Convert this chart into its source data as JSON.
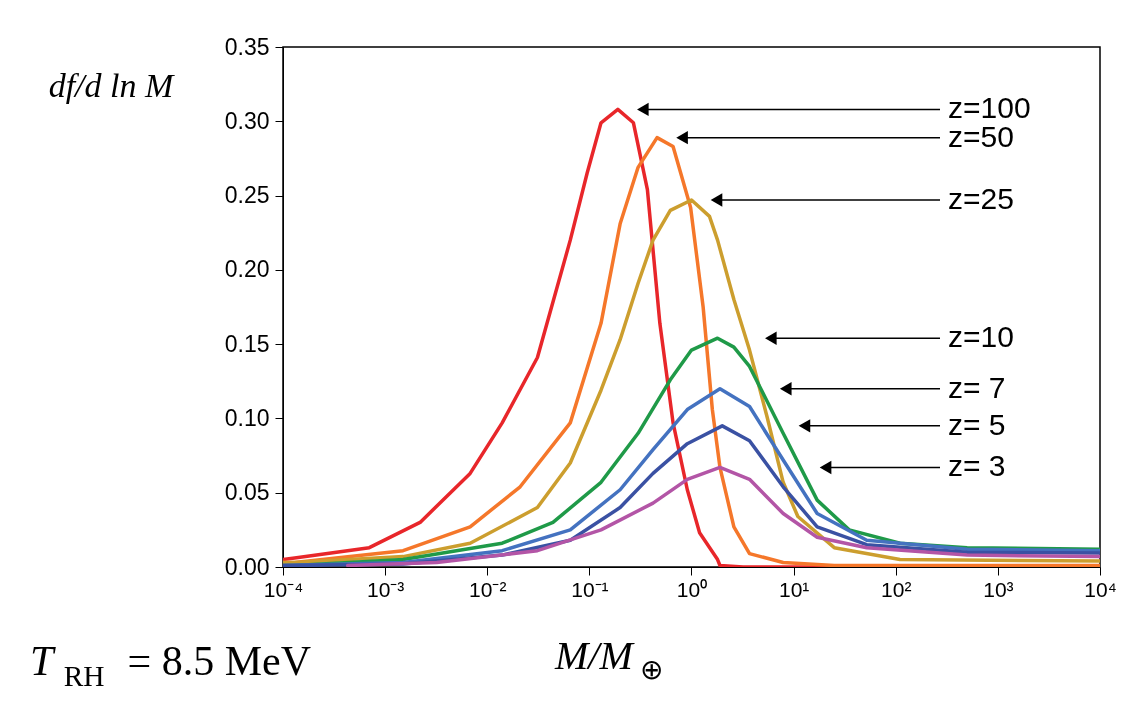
{
  "chart_data": {
    "type": "line",
    "xlabel": "M/M$_{⊕}$",
    "ylabel": "df/d ln M",
    "log": "x",
    "xlim": [
      0.0001,
      10000
    ],
    "ylim": [
      0,
      0.35
    ],
    "xticks": [
      {
        "value": 0.0001,
        "label": "10⁻⁴"
      },
      {
        "value": 0.001,
        "label": "10⁻³"
      },
      {
        "value": 0.01,
        "label": "10⁻²"
      },
      {
        "value": 0.1,
        "label": "10⁻¹"
      },
      {
        "value": 1,
        "label": "10⁰"
      },
      {
        "value": 10,
        "label": "10¹"
      },
      {
        "value": 100,
        "label": "10²"
      },
      {
        "value": 1000,
        "label": "10³"
      },
      {
        "value": 10000,
        "label": "10⁴"
      }
    ],
    "yticks": [
      {
        "value": 0,
        "label": "0.00"
      },
      0.05,
      {
        "value": 0.1,
        "label": "0.10"
      },
      0.15,
      {
        "value": 0.2,
        "label": "0.20"
      },
      0.25,
      {
        "value": 0.3,
        "label": "0.30"
      },
      0.35
    ],
    "grid": false,
    "legend": false,
    "line_style": "solid",
    "marker": "none",
    "series": [
      {
        "color": "#e8262a",
        "x": [
          0.0001,
          0.00013,
          0.0007,
          0.0022,
          0.0068,
          0.014,
          0.031,
          0.065,
          0.095,
          0.13,
          0.19,
          0.27,
          0.37,
          0.49,
          0.66,
          0.91,
          1.2,
          1.8,
          1.9,
          3.2,
          100,
          10000
        ],
        "values": [
          0.005,
          0.006,
          0.013,
          0.03,
          0.063,
          0.097,
          0.141,
          0.22,
          0.265,
          0.299,
          0.308,
          0.299,
          0.254,
          0.164,
          0.097,
          0.052,
          0.023,
          0.005,
          0.001,
          0,
          0,
          0
        ]
      },
      {
        "color": "#f5772a",
        "x": [
          0.0001,
          0.00013,
          0.0015,
          0.0068,
          0.021,
          0.065,
          0.13,
          0.2,
          0.3,
          0.46,
          0.66,
          0.98,
          1.3,
          1.6,
          1.9,
          2.6,
          3.7,
          7.9,
          25,
          10000
        ],
        "values": [
          0.003,
          0.003,
          0.011,
          0.027,
          0.054,
          0.097,
          0.164,
          0.231,
          0.269,
          0.289,
          0.283,
          0.242,
          0.175,
          0.106,
          0.067,
          0.027,
          0.009,
          0.003,
          0.001,
          0.001
        ]
      },
      {
        "color": "#cc9e2e",
        "x": [
          0.0001,
          0.00013,
          0.0015,
          0.0068,
          0.031,
          0.065,
          0.13,
          0.2,
          0.3,
          0.42,
          0.62,
          1.0,
          1.5,
          1.8,
          2.6,
          3.7,
          5.5,
          7.9,
          11,
          25,
          110,
          10000
        ],
        "values": [
          0.003,
          0.003,
          0.007,
          0.016,
          0.04,
          0.07,
          0.119,
          0.153,
          0.191,
          0.22,
          0.24,
          0.247,
          0.236,
          0.22,
          0.18,
          0.146,
          0.101,
          0.057,
          0.034,
          0.013,
          0.005,
          0.004
        ]
      },
      {
        "color": "#1f9a48",
        "x": [
          0.0001,
          0.00013,
          0.0015,
          0.014,
          0.044,
          0.13,
          0.3,
          0.62,
          1.0,
          1.8,
          2.6,
          3.7,
          7.9,
          17,
          35,
          110,
          500,
          10000
        ],
        "values": [
          0.001,
          0.001,
          0.005,
          0.016,
          0.03,
          0.057,
          0.09,
          0.126,
          0.146,
          0.154,
          0.148,
          0.135,
          0.09,
          0.045,
          0.025,
          0.016,
          0.013,
          0.012
        ]
      },
      {
        "color": "#4472c0",
        "x": [
          0.0001,
          0.0015,
          0.014,
          0.065,
          0.2,
          0.42,
          0.91,
          1.9,
          3.7,
          7.9,
          17,
          52,
          500,
          10000
        ],
        "values": [
          0.001,
          0.003,
          0.011,
          0.025,
          0.052,
          0.079,
          0.106,
          0.12,
          0.108,
          0.072,
          0.036,
          0.018,
          0.012,
          0.011
        ]
      },
      {
        "color": "#3a51a3",
        "x": [
          0.0001,
          0.0015,
          0.014,
          0.065,
          0.2,
          0.42,
          0.91,
          2.0,
          3.7,
          7.9,
          17,
          52,
          500,
          10000
        ],
        "values": [
          0.001,
          0.002,
          0.008,
          0.018,
          0.04,
          0.063,
          0.083,
          0.095,
          0.085,
          0.054,
          0.027,
          0.015,
          0.01,
          0.0095
        ]
      },
      {
        "color": "#b355a6",
        "x": [
          0.00043,
          0.0032,
          0.031,
          0.13,
          0.42,
          0.91,
          1.9,
          3.7,
          7.9,
          17,
          52,
          500,
          10000
        ],
        "values": [
          0.001,
          0.003,
          0.011,
          0.025,
          0.043,
          0.059,
          0.067,
          0.059,
          0.036,
          0.02,
          0.013,
          0.008,
          0.007
        ]
      }
    ],
    "annotations": [
      "z=100",
      "z=50",
      "z=25",
      "z=10",
      "z= 7",
      "z= 5",
      "z= 3",
      "T$_{RH}$ = 8.5 MeV"
    ]
  }
}
